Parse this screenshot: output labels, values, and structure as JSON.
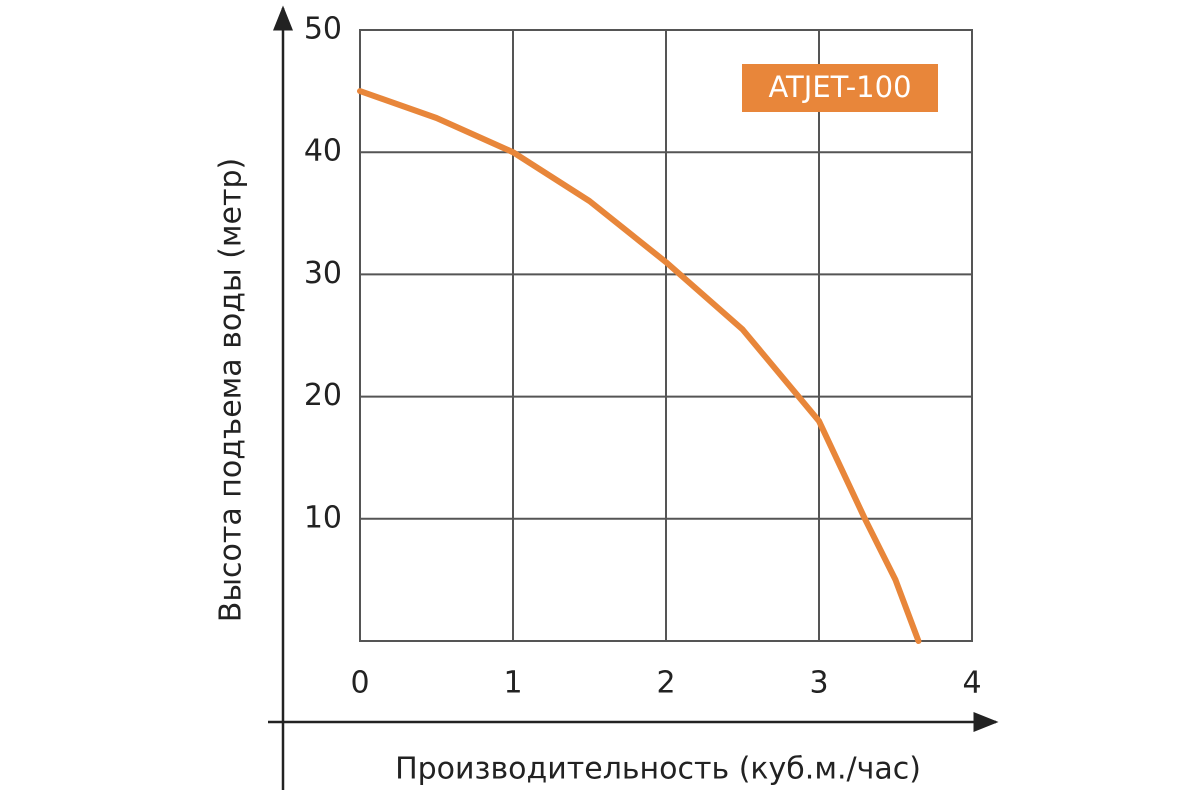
{
  "chart_data": {
    "type": "line",
    "x_label": "Производительность (куб.м./час)",
    "y_label": "Высота подъема воды (метр)",
    "x": [
      0,
      0.5,
      1,
      1.5,
      2,
      2.5,
      3,
      3.3,
      3.5,
      3.65
    ],
    "series": [
      {
        "name": "ATJET-100",
        "color": "#e8863a",
        "values": [
          45,
          42.8,
          40,
          36,
          31,
          25.5,
          18,
          10,
          5,
          0
        ]
      }
    ],
    "xlim": [
      0,
      4
    ],
    "xticks": [
      0,
      1,
      2,
      3,
      4
    ],
    "ylim": [
      0,
      50
    ],
    "yticks": [
      10,
      20,
      30,
      40,
      50
    ],
    "grid": true,
    "legend": "top-right"
  }
}
